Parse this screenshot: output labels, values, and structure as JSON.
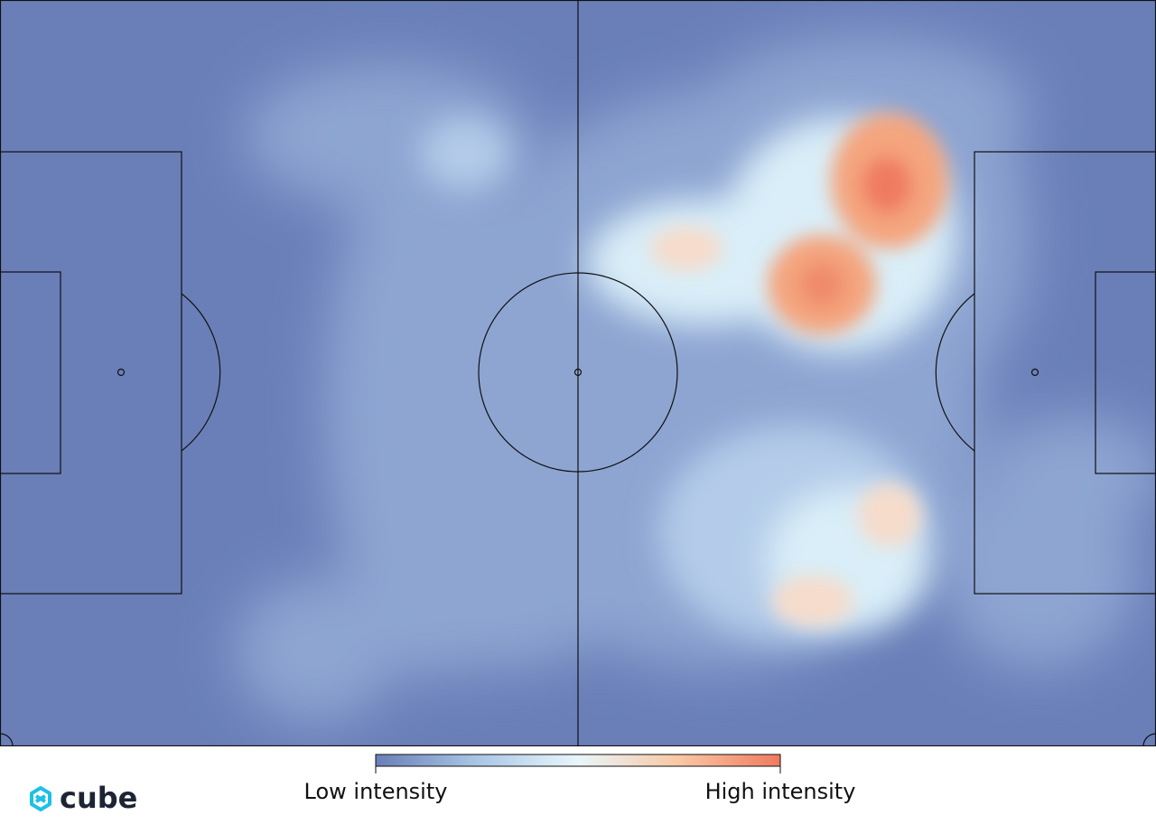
{
  "chart_data": {
    "type": "heatmap",
    "colorbar": {
      "low_label": "Low intensity",
      "high_label": "High intensity",
      "colors": [
        "#6a7fb8",
        "#a9c6e6",
        "#e8f6fb",
        "#f9c7a3",
        "#f07a5e"
      ]
    }
  },
  "logo": {
    "text": "cube"
  }
}
